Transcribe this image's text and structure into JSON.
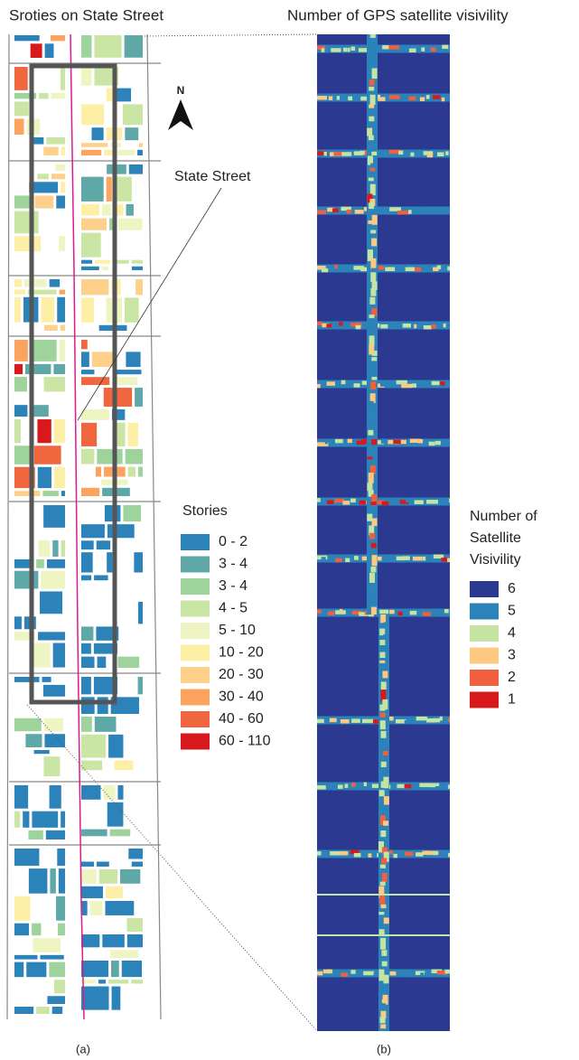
{
  "panel_a": {
    "title": "Sroties on State Street",
    "north": "N",
    "street_label": "State Street",
    "caption": "(a)",
    "legend": {
      "title": "Stories",
      "items": [
        {
          "label": "0 - 2",
          "color": "#2b83ba"
        },
        {
          "label": "3 - 4",
          "color": "#5fa8a8"
        },
        {
          "label": "3 - 4",
          "color": "#9ed49b"
        },
        {
          "label": "4 - 5",
          "color": "#cbe6a4"
        },
        {
          "label": "5 - 10",
          "color": "#eef5c2"
        },
        {
          "label": "10 - 20",
          "color": "#fdf0a6"
        },
        {
          "label": "20 - 30",
          "color": "#fdd18b"
        },
        {
          "label": "30 - 40",
          "color": "#fca35f"
        },
        {
          "label": "40 - 60",
          "color": "#f0663f"
        },
        {
          "label": "60 - 110",
          "color": "#d7191c"
        }
      ]
    }
  },
  "panel_b": {
    "title": "Number of GPS satellite visivility",
    "caption": "(b)",
    "legend": {
      "title_lines": [
        "Number of",
        "Satellite",
        "Visivility"
      ],
      "items": [
        {
          "label": "6",
          "color": "#2b3990"
        },
        {
          "label": "5",
          "color": "#2b83ba"
        },
        {
          "label": "4",
          "color": "#c5e4a4"
        },
        {
          "label": "3",
          "color": "#fdc980"
        },
        {
          "label": "2",
          "color": "#f0603f"
        },
        {
          "label": "1",
          "color": "#d7191c"
        }
      ]
    }
  }
}
